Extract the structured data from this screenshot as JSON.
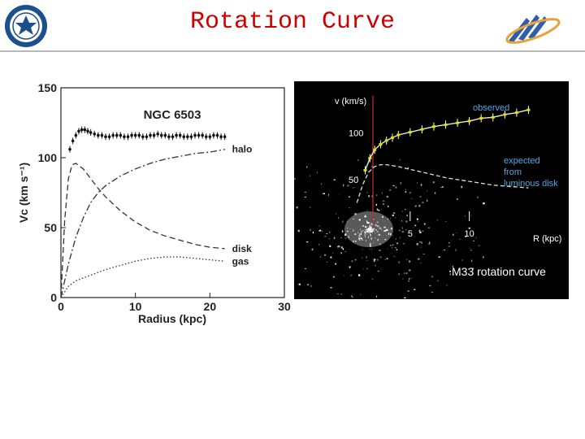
{
  "header": {
    "title": "Rotation Curve",
    "accent_color": "#cc0000",
    "left_logo_icon": "university-seal-icon",
    "right_logo_icon": "institute-logo-icon"
  },
  "chart_data": [
    {
      "type": "line",
      "title": "NGC 6503",
      "xlabel": "Radius (kpc)",
      "ylabel": "Vc (km s⁻¹)",
      "xlim": [
        0,
        30
      ],
      "ylim": [
        0,
        150
      ],
      "xticks": [
        0,
        10,
        20,
        30
      ],
      "yticks": [
        0,
        50,
        100,
        150
      ],
      "grid": false,
      "theme": "light",
      "series": [
        {
          "name": "observed",
          "style": "points-with-error-bars",
          "x": [
            1.2,
            1.6,
            2.0,
            2.4,
            2.8,
            3.2,
            3.6,
            4.0,
            4.5,
            5.0,
            5.5,
            6.0,
            6.5,
            7.0,
            7.5,
            8.0,
            8.5,
            9.0,
            9.5,
            10.0,
            10.5,
            11.0,
            11.5,
            12.0,
            12.5,
            13.0,
            13.5,
            14.0,
            14.5,
            15.0,
            15.5,
            16.0,
            16.5,
            17.0,
            17.5,
            18.0,
            18.5,
            19.0,
            19.5,
            20.0,
            20.5,
            21.0,
            21.5,
            22.0
          ],
          "y": [
            106,
            112,
            116,
            119,
            120,
            120,
            119,
            118,
            117,
            116,
            116,
            115,
            115,
            116,
            116,
            116,
            115,
            115,
            116,
            116,
            116,
            115,
            115,
            116,
            116,
            117,
            116,
            116,
            115,
            115,
            116,
            116,
            115,
            115,
            115,
            116,
            116,
            116,
            115,
            115,
            116,
            116,
            115,
            115
          ]
        },
        {
          "name": "halo",
          "style": "dash-dot",
          "x": [
            0,
            0.5,
            1,
            2,
            3,
            4,
            5,
            6,
            8,
            10,
            12,
            14,
            16,
            18,
            20,
            22
          ],
          "y": [
            0,
            12,
            24,
            43,
            57,
            68,
            75,
            80,
            87,
            92,
            96,
            99,
            101,
            103,
            104,
            106
          ]
        },
        {
          "name": "disk",
          "style": "dashed",
          "x": [
            0,
            0.5,
            1,
            1.5,
            2,
            3,
            4,
            5,
            6,
            8,
            10,
            12,
            14,
            16,
            18,
            20,
            22
          ],
          "y": [
            0,
            55,
            85,
            95,
            96,
            92,
            85,
            78,
            72,
            62,
            54,
            48,
            44,
            41,
            38,
            36,
            35
          ]
        },
        {
          "name": "gas",
          "style": "dotted",
          "x": [
            0,
            1,
            2,
            3,
            4,
            5,
            6,
            8,
            10,
            12,
            14,
            16,
            18,
            20,
            22
          ],
          "y": [
            0,
            8,
            12,
            14,
            16,
            18,
            20,
            23,
            26,
            28,
            29,
            29,
            28,
            27,
            26
          ]
        }
      ]
    },
    {
      "type": "line",
      "title": "",
      "caption": "M33 rotation curve",
      "xlabel": "R (kpc)",
      "ylabel": "v (km/s)",
      "xlim": [
        0,
        16
      ],
      "ylim": [
        0,
        140
      ],
      "xticks": [
        5,
        10
      ],
      "yticks": [
        50,
        100
      ],
      "grid": false,
      "theme": "dark",
      "series": [
        {
          "name": "observed",
          "style": "points-with-error-bars",
          "x": [
            1.2,
            1.6,
            2.0,
            2.5,
            3.0,
            3.5,
            4.0,
            5.0,
            6.0,
            7.0,
            8.0,
            9.0,
            10.0,
            11.0,
            12.0,
            13.0,
            14.0,
            15.0
          ],
          "y": [
            60,
            73,
            82,
            88,
            92,
            95,
            98,
            101,
            104,
            107,
            109,
            111,
            113,
            116,
            117,
            120,
            122,
            125
          ]
        },
        {
          "name": "expected from luminous disk",
          "style": "dashed",
          "x": [
            0.5,
            1.0,
            1.5,
            2.0,
            2.5,
            3.0,
            4.0,
            5.0,
            6.0,
            7.0,
            8.0,
            9.0,
            10.0,
            11.0,
            12.0,
            13.0,
            14.0,
            15.0
          ],
          "y": [
            25,
            45,
            58,
            64,
            66,
            66,
            64,
            61,
            58,
            55,
            52,
            50,
            48,
            46,
            44,
            43,
            42,
            41
          ]
        }
      ]
    }
  ]
}
